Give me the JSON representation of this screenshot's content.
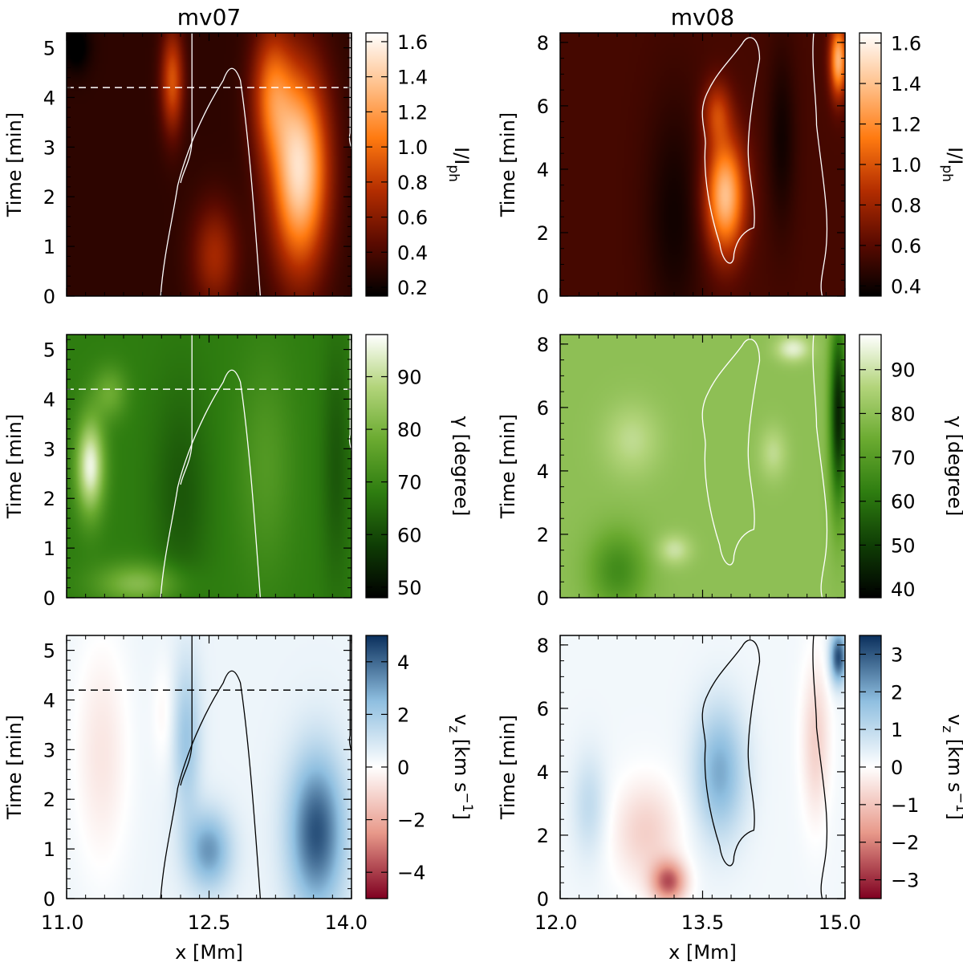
{
  "chart_data": [
    {
      "type": "heatmap",
      "title": "mv07",
      "xlim": [
        11.0,
        14.0
      ],
      "ylim": [
        0,
        5.3
      ],
      "xticks": [
        "11.0",
        "12.5",
        "14.0"
      ],
      "yticks": [
        "0",
        "1",
        "2",
        "3",
        "4",
        "5"
      ],
      "xlabel": "",
      "ylabel": "Time [min]",
      "colorbar": {
        "label": "I/I",
        "label_sub": "ph",
        "ticks": [
          "0.2",
          "0.4",
          "0.6",
          "0.8",
          "1.0",
          "1.2",
          "1.4",
          "1.6"
        ],
        "range": [
          0.15,
          1.65
        ],
        "cmap": "heat"
      },
      "dashed_line_time": 4.2
    },
    {
      "type": "heatmap",
      "title": "mv08",
      "xlim": [
        12.0,
        15.0
      ],
      "ylim": [
        0,
        8.3
      ],
      "xticks": [
        "12.0",
        "13.5",
        "15.0"
      ],
      "yticks": [
        "0",
        "2",
        "4",
        "6",
        "8"
      ],
      "xlabel": "",
      "ylabel": "Time [min]",
      "colorbar": {
        "label": "I/I",
        "label_sub": "ph",
        "ticks": [
          "0.4",
          "0.6",
          "0.8",
          "1.0",
          "1.2",
          "1.4",
          "1.6"
        ],
        "range": [
          0.35,
          1.65
        ],
        "cmap": "heat"
      }
    },
    {
      "type": "heatmap",
      "title": "",
      "xlim": [
        11.0,
        14.0
      ],
      "ylim": [
        0,
        5.3
      ],
      "xticks": [
        "11.0",
        "12.5",
        "14.0"
      ],
      "yticks": [
        "0",
        "1",
        "2",
        "3",
        "4",
        "5"
      ],
      "xlabel": "",
      "ylabel": "Time [min]",
      "colorbar": {
        "label": "γ [degree]",
        "ticks": [
          "50",
          "60",
          "70",
          "80",
          "90"
        ],
        "range": [
          48,
          98
        ],
        "cmap": "green"
      },
      "dashed_line_time": 4.2
    },
    {
      "type": "heatmap",
      "title": "",
      "xlim": [
        12.0,
        15.0
      ],
      "ylim": [
        0,
        8.3
      ],
      "xticks": [
        "12.0",
        "13.5",
        "15.0"
      ],
      "yticks": [
        "0",
        "2",
        "4",
        "6",
        "8"
      ],
      "xlabel": "",
      "ylabel": "Time [min]",
      "colorbar": {
        "label": "γ [degree]",
        "ticks": [
          "40",
          "50",
          "60",
          "70",
          "80",
          "90"
        ],
        "range": [
          38,
          98
        ],
        "cmap": "green"
      }
    },
    {
      "type": "heatmap",
      "title": "",
      "xlim": [
        11.0,
        14.0
      ],
      "ylim": [
        0,
        5.3
      ],
      "xticks": [
        "11.0",
        "12.5",
        "14.0"
      ],
      "yticks": [
        "0",
        "1",
        "2",
        "3",
        "4",
        "5"
      ],
      "xlabel": "x [Mm]",
      "ylabel": "Time [min]",
      "colorbar": {
        "label": "v",
        "label_sub": "z",
        "label_tail": " [km s",
        "label_sup": "−1",
        "label_end": "]",
        "ticks": [
          "−4",
          "−2",
          "0",
          "2",
          "4"
        ],
        "range": [
          -5,
          5
        ],
        "cmap": "diverging"
      },
      "dashed_line_time": 4.2
    },
    {
      "type": "heatmap",
      "title": "",
      "xlim": [
        12.0,
        15.0
      ],
      "ylim": [
        0,
        8.3
      ],
      "xticks": [
        "12.0",
        "13.5",
        "15.0"
      ],
      "yticks": [
        "0",
        "2",
        "4",
        "6",
        "8"
      ],
      "xlabel": "x [Mm]",
      "ylabel": "Time [min]",
      "colorbar": {
        "label": "v",
        "label_sub": "z",
        "label_tail": " [km s",
        "label_sup": "−1",
        "label_end": "]",
        "ticks": [
          "−3",
          "−2",
          "−1",
          "0",
          "1",
          "2",
          "3"
        ],
        "range": [
          -3.5,
          3.5
        ],
        "cmap": "diverging"
      }
    }
  ],
  "colors": {
    "heat": [
      "#000000",
      "#5a0a00",
      "#b32d00",
      "#ff7a10",
      "#ffc08a",
      "#ffffff"
    ],
    "green": [
      "#000000",
      "#0f3d05",
      "#2e7d10",
      "#6aaa30",
      "#b2d47a",
      "#ffffff"
    ],
    "diverging": [
      "#7f0020",
      "#e8998a",
      "#ffffff",
      "#8fbfe0",
      "#0a2f5c"
    ]
  }
}
